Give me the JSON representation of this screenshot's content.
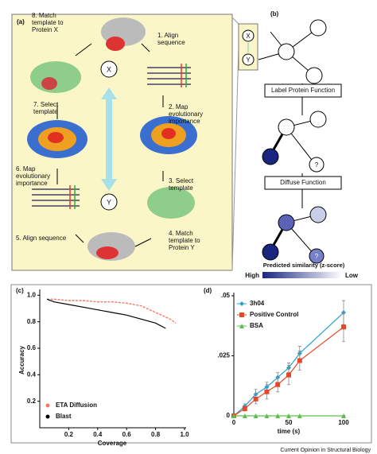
{
  "panel_a": {
    "label": "(a)",
    "center_nodes": [
      "X",
      "Y"
    ],
    "steps": [
      [
        "1. Align",
        "sequence"
      ],
      [
        "2. Map",
        "evolutionary",
        "importance"
      ],
      [
        "3. Select",
        "template"
      ],
      [
        "4. Match",
        "template to",
        "Protein Y"
      ],
      [
        "5. Align sequence"
      ],
      [
        "6. Map",
        "evolutionary",
        "importance"
      ],
      [
        "7. Select",
        "template"
      ],
      [
        "8. Match",
        "template to",
        "Protein X"
      ]
    ]
  },
  "panel_b": {
    "label": "(b)",
    "nodes": [
      "X",
      "Y"
    ],
    "steps": [
      "Label Protein Function",
      "Diffuse Function"
    ],
    "unknown_labels": [
      "?",
      "?"
    ],
    "legend": {
      "title": "Predicted similarity (z-score)",
      "high": "High",
      "low": "Low"
    }
  },
  "chart_data": [
    {
      "type": "line",
      "label": "(c)",
      "xlabel": "Coverage",
      "ylabel": "Accuracy",
      "xlim": [
        0,
        1
      ],
      "ylim": [
        0,
        1.02
      ],
      "xticks": [
        0.2,
        0.4,
        0.6,
        0.8,
        {
          "value": 1,
          "label": "1.0"
        }
      ],
      "yticks": [
        0.2,
        0.4,
        0.6,
        0.8,
        {
          "value": 1,
          "label": "1.0"
        }
      ],
      "legend": "lower left",
      "series": [
        {
          "name": "ETA Diffusion",
          "color": "#f07a6a",
          "style": "dashed",
          "x": [
            0.05,
            0.1,
            0.2,
            0.3,
            0.4,
            0.5,
            0.6,
            0.7,
            0.8,
            0.9,
            0.94
          ],
          "values": [
            0.97,
            0.97,
            0.96,
            0.96,
            0.95,
            0.95,
            0.94,
            0.92,
            0.87,
            0.82,
            0.79
          ]
        },
        {
          "name": "Blast",
          "color": "#000000",
          "style": "solid",
          "x": [
            0.05,
            0.1,
            0.2,
            0.3,
            0.4,
            0.5,
            0.6,
            0.7,
            0.8,
            0.87
          ],
          "values": [
            0.97,
            0.95,
            0.93,
            0.91,
            0.89,
            0.87,
            0.85,
            0.82,
            0.79,
            0.75
          ]
        }
      ]
    },
    {
      "type": "line",
      "label": "(d)",
      "xlabel": "time (s)",
      "xlim": [
        0,
        100
      ],
      "ylim": [
        0,
        0.05
      ],
      "xticks": [
        0,
        50,
        100
      ],
      "yticks": [
        0,
        {
          "value": 0.025,
          "label": ".025"
        },
        {
          "value": 0.05,
          "label": ".05"
        }
      ],
      "legend": "upper left",
      "x": [
        0,
        10,
        20,
        30,
        40,
        50,
        60,
        100
      ],
      "series": [
        {
          "name": "3h04",
          "color": "#2a9fd0",
          "marker": "diamond",
          "values": [
            0,
            0.004,
            0.009,
            0.012,
            0.016,
            0.02,
            0.026,
            0.043
          ],
          "errors": [
            0,
            0.001,
            0.002,
            0.002,
            0.002,
            0.002,
            0.003,
            0.005
          ]
        },
        {
          "name": "Positive Control",
          "color": "#e8482a",
          "marker": "square",
          "values": [
            0,
            0.003,
            0.007,
            0.01,
            0.013,
            0.017,
            0.023,
            0.037
          ],
          "errors": [
            0,
            0.001,
            0.002,
            0.003,
            0.003,
            0.004,
            0.004,
            0.006
          ]
        },
        {
          "name": "BSA",
          "color": "#5cc04a",
          "marker": "triangle",
          "values": [
            0,
            0,
            0,
            0,
            0,
            0,
            0,
            0
          ]
        }
      ]
    }
  ],
  "footer": "Current Opinion in Structural Biology"
}
